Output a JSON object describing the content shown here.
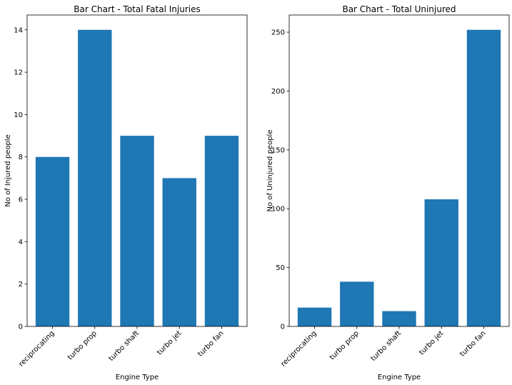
{
  "chart_data": [
    {
      "type": "bar",
      "title": "Bar Chart - Total Fatal Injuries",
      "xlabel": "Engine Type",
      "ylabel": "No of Injured people",
      "categories": [
        "reciprocating",
        "turbo prop",
        "turbo shaft",
        "turbo jet",
        "turbo fan"
      ],
      "values": [
        8,
        14,
        9,
        7,
        9
      ],
      "ylim": [
        0,
        14.7
      ],
      "yticks": [
        0,
        2,
        4,
        6,
        8,
        10,
        12,
        14
      ],
      "bar_color": "#1f77b4",
      "grid": false
    },
    {
      "type": "bar",
      "title": "Bar Chart - Total Uninjured",
      "xlabel": "Engine Type",
      "ylabel": "No of Uninjured people",
      "categories": [
        "reciprocating",
        "turbo prop",
        "turbo shaft",
        "turbo jet",
        "turbo fan"
      ],
      "values": [
        16,
        38,
        13,
        108,
        252
      ],
      "ylim": [
        0,
        264.6
      ],
      "yticks": [
        0,
        50,
        100,
        150,
        200,
        250
      ],
      "bar_color": "#1f77b4",
      "grid": false
    }
  ]
}
